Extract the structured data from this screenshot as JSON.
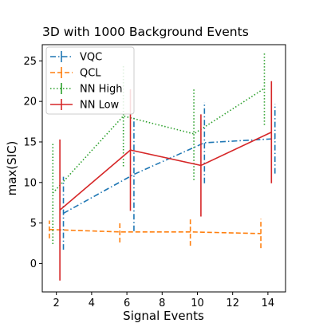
{
  "chart_data": {
    "type": "line",
    "title": "3D with 1000 Background Events",
    "xlabel": "Signal Events",
    "ylabel": "max(SIC)",
    "xlim": [
      1.2,
      15.0
    ],
    "ylim": [
      -3.5,
      27.0
    ],
    "xticks": [
      2,
      4,
      6,
      8,
      10,
      12,
      14
    ],
    "yticks": [
      0,
      5,
      10,
      15,
      20,
      25
    ],
    "grid": false,
    "legend_position": "top-left",
    "series": [
      {
        "name": "VQC",
        "color": "#1f77b4",
        "dash": "dashdot",
        "x": [
          2.4,
          6.4,
          10.4,
          14.4
        ],
        "y": [
          6.2,
          11.0,
          14.9,
          15.4
        ],
        "yerr": [
          4.5,
          7.0,
          5.0,
          4.3
        ]
      },
      {
        "name": "QCL",
        "color": "#ff7f0e",
        "dash": "dashed",
        "x": [
          1.6,
          5.6,
          9.6,
          13.6
        ],
        "y": [
          4.2,
          3.9,
          3.9,
          3.7
        ],
        "yerr": [
          1.1,
          1.3,
          1.7,
          1.8
        ]
      },
      {
        "name": "NN High",
        "color": "#2ca02c",
        "dash": "dotted",
        "x": [
          1.8,
          5.8,
          9.8,
          13.8
        ],
        "y": [
          8.7,
          18.2,
          16.0,
          21.6
        ],
        "yerr": [
          6.3,
          6.2,
          5.7,
          4.5
        ]
      },
      {
        "name": "NN Low",
        "color": "#d62728",
        "dash": "solid",
        "x": [
          2.2,
          6.2,
          10.2,
          14.2
        ],
        "y": [
          6.6,
          14.0,
          12.1,
          16.2
        ],
        "yerr": [
          8.7,
          7.5,
          6.3,
          6.3
        ]
      }
    ]
  }
}
